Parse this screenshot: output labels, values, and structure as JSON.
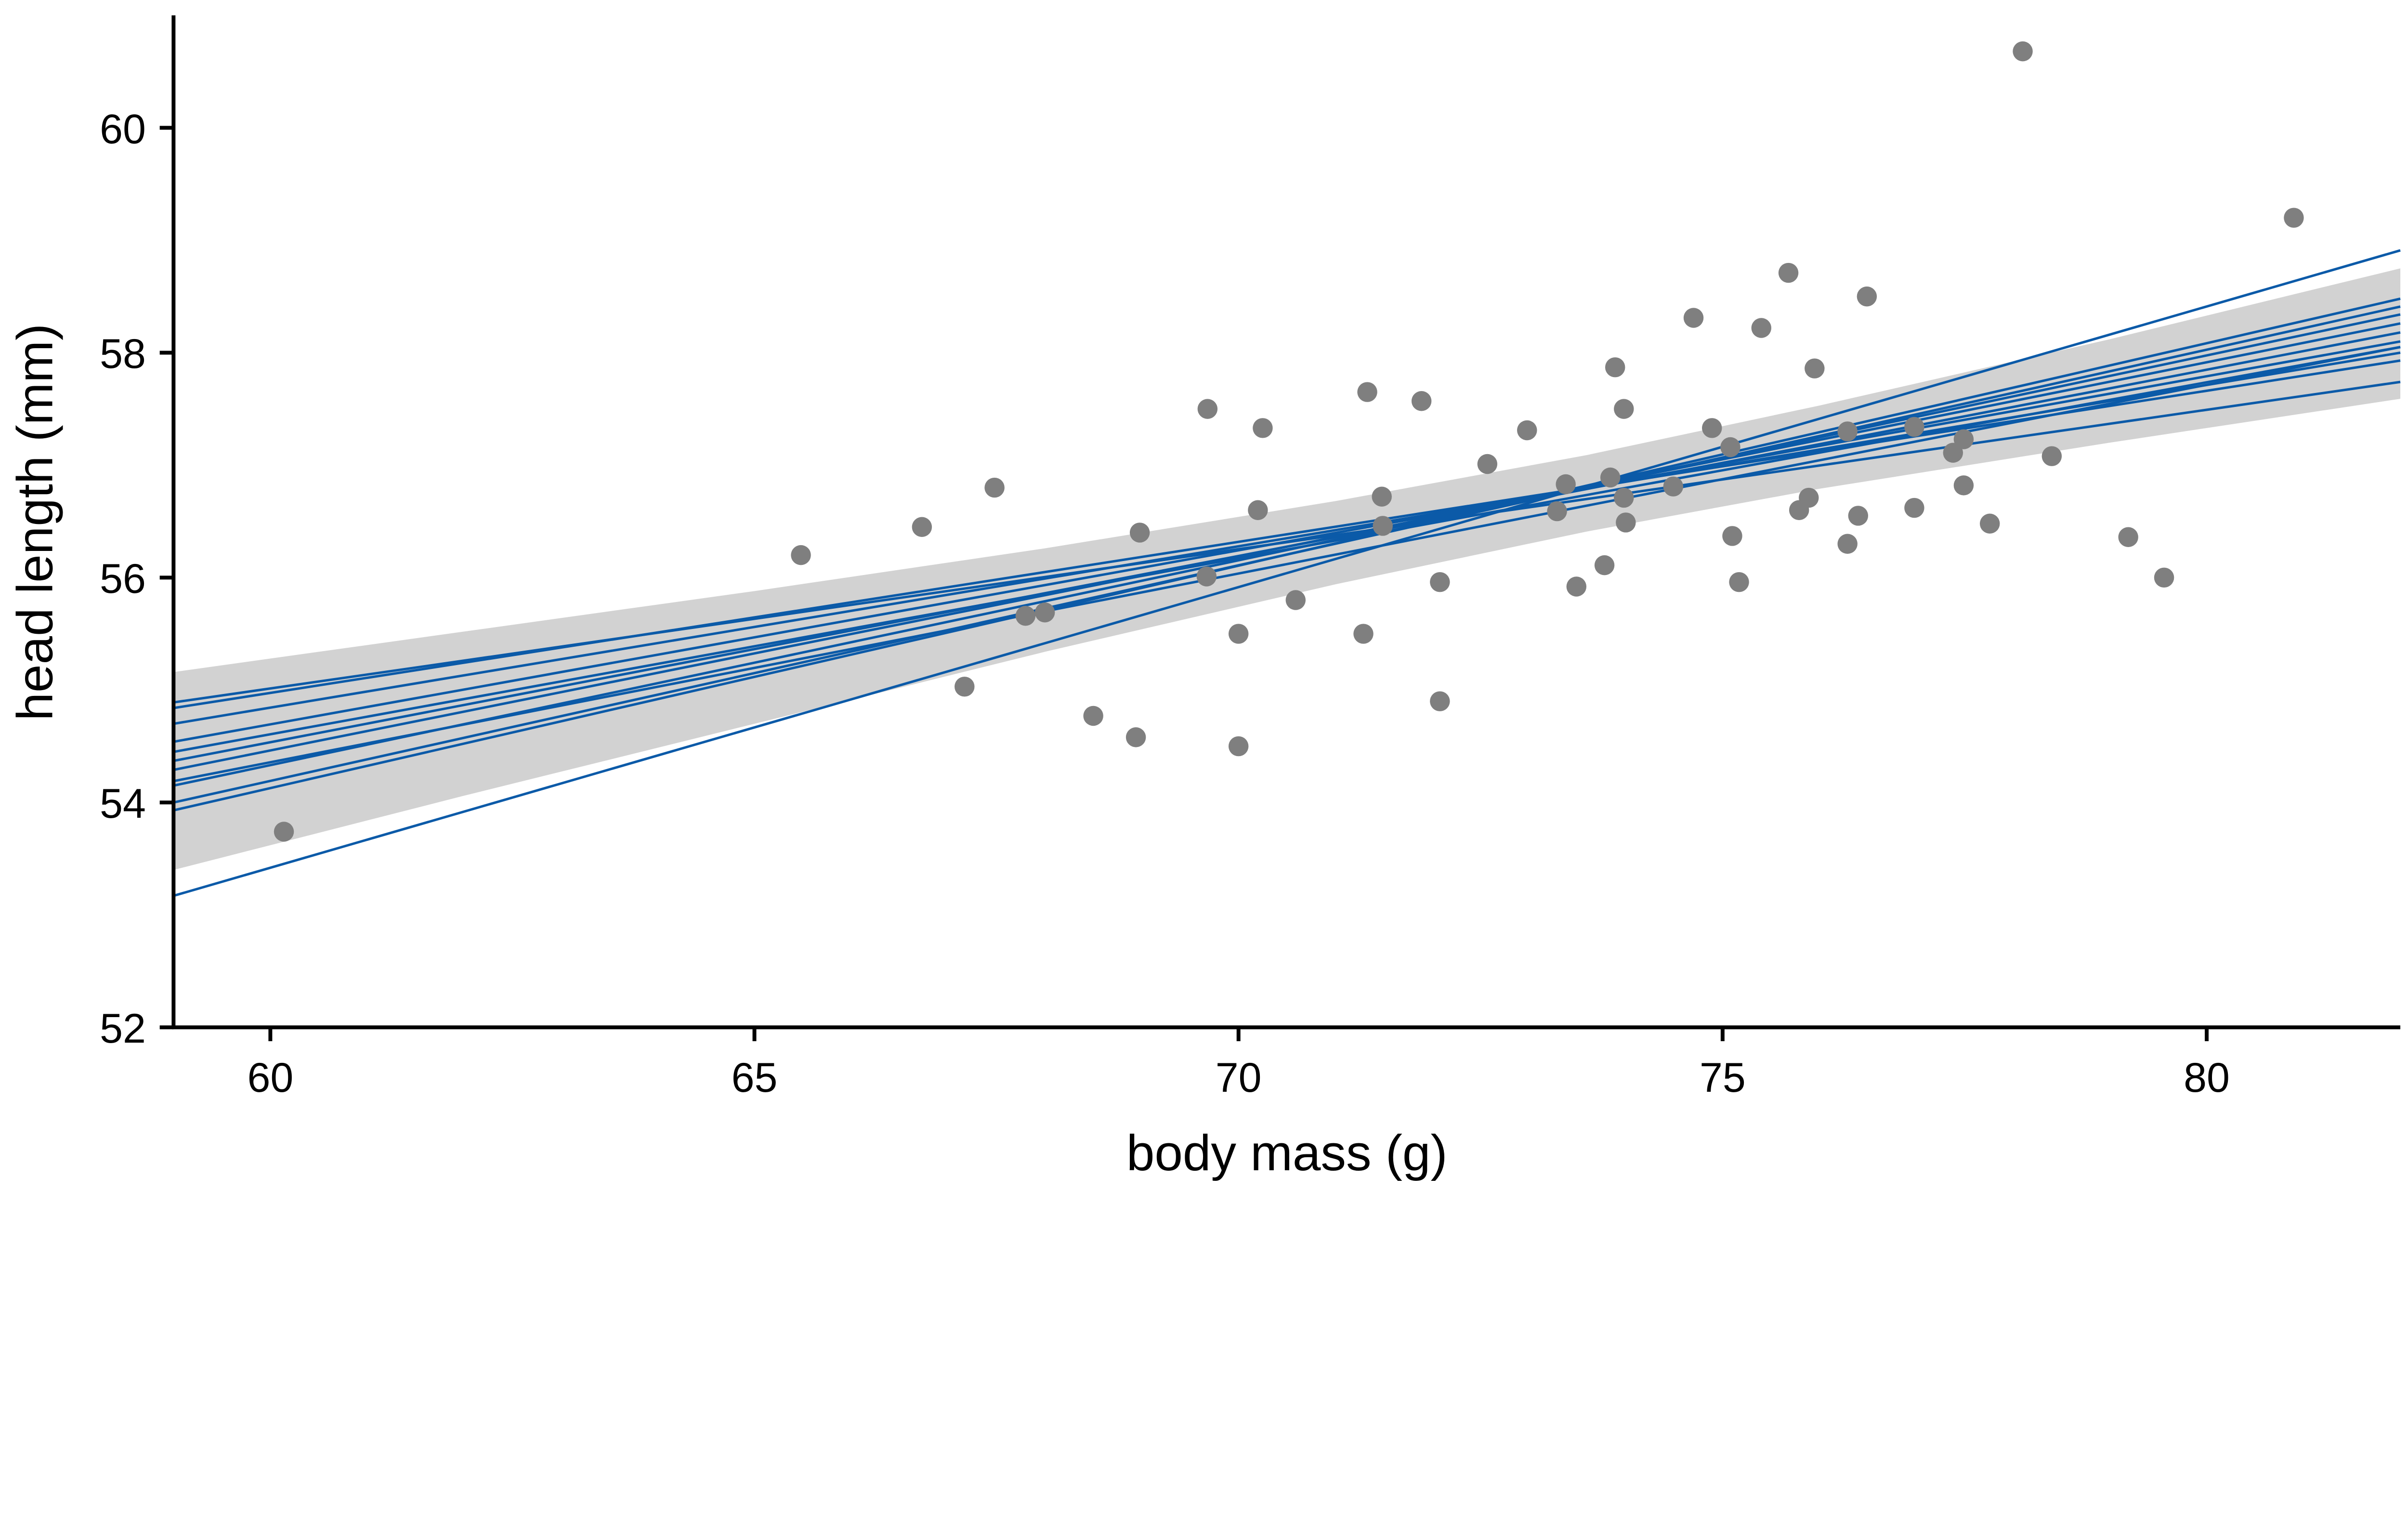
{
  "chart_data": {
    "type": "scatter",
    "title": "",
    "xlabel": "body mass (g)",
    "ylabel": "head length (mm)",
    "xlim": [
      59,
      82
    ],
    "ylim": [
      52,
      61
    ],
    "xticks": [
      60,
      65,
      70,
      75,
      80
    ],
    "yticks": [
      52,
      54,
      56,
      58,
      60
    ],
    "grid": false,
    "colors": {
      "points": "#7f7f7f",
      "lines": "#0b5aa8",
      "band": "#d2d2d2",
      "axis": "#000000"
    },
    "points": {
      "x": [
        60.14,
        65.48,
        67.17,
        66.73,
        67.48,
        67.8,
        68.0,
        68.5,
        68.94,
        68.98,
        69.68,
        69.67,
        70.0,
        70.0,
        70.2,
        70.25,
        70.59,
        71.29,
        71.33,
        71.48,
        71.49,
        71.89,
        72.08,
        72.08,
        72.57,
        72.98,
        73.29,
        73.38,
        73.49,
        73.78,
        73.89,
        73.84,
        73.98,
        73.98,
        74.0,
        74.49,
        74.7,
        74.89,
        75.08,
        75.1,
        75.17,
        75.4,
        75.68,
        75.79,
        75.89,
        75.95,
        76.29,
        76.29,
        76.4,
        76.49,
        76.98,
        76.98,
        77.38,
        77.49,
        77.49,
        77.76,
        78.1,
        78.4,
        79.19,
        79.56,
        80.9
      ],
      "y": [
        53.74,
        56.2,
        55.03,
        56.45,
        56.8,
        55.66,
        55.69,
        54.77,
        54.58,
        56.4,
        57.5,
        56.01,
        55.5,
        54.5,
        56.6,
        57.33,
        55.8,
        55.5,
        57.65,
        56.72,
        56.46,
        57.57,
        55.96,
        54.9,
        57.01,
        57.31,
        56.59,
        56.83,
        55.92,
        56.11,
        57.87,
        56.89,
        57.5,
        56.71,
        56.49,
        56.81,
        58.31,
        57.33,
        57.16,
        56.37,
        55.96,
        58.22,
        58.71,
        56.6,
        56.71,
        57.86,
        57.3,
        56.3,
        56.55,
        58.5,
        57.34,
        56.62,
        57.11,
        57.23,
        56.82,
        56.48,
        60.68,
        57.08,
        56.36,
        56.0,
        59.2
      ]
    },
    "confidence_band": {
      "x": [
        59,
        62,
        65,
        68,
        71,
        73.6,
        76,
        79,
        82
      ],
      "lower": [
        53.4,
        54.06,
        54.7,
        55.34,
        55.94,
        56.41,
        56.79,
        57.2,
        57.59
      ],
      "upper": [
        55.16,
        55.52,
        55.88,
        56.26,
        56.68,
        57.09,
        57.53,
        58.12,
        58.75
      ]
    },
    "fit_lines": [
      {
        "x": [
          59,
          82
        ],
        "y": [
          54.89,
          57.74
        ]
      },
      {
        "x": [
          59,
          82
        ],
        "y": [
          54.84,
          57.93
        ]
      },
      {
        "x": [
          59,
          82
        ],
        "y": [
          54.7,
          58.0
        ]
      },
      {
        "x": [
          59,
          82
        ],
        "y": [
          54.54,
          58.1
        ]
      },
      {
        "x": [
          59,
          82
        ],
        "y": [
          54.45,
          58.05
        ]
      },
      {
        "x": [
          59,
          82
        ],
        "y": [
          54.37,
          58.18
        ]
      },
      {
        "x": [
          59,
          82
        ],
        "y": [
          54.29,
          58.26
        ]
      },
      {
        "x": [
          59,
          82
        ],
        "y": [
          54.19,
          58.05
        ]
      },
      {
        "x": [
          59,
          82
        ],
        "y": [
          54.15,
          58.34
        ]
      },
      {
        "x": [
          59,
          82
        ],
        "y": [
          54.0,
          58.41
        ]
      },
      {
        "x": [
          59,
          82
        ],
        "y": [
          53.93,
          58.48
        ]
      },
      {
        "x": [
          59,
          82
        ],
        "y": [
          53.17,
          58.91
        ]
      }
    ]
  }
}
